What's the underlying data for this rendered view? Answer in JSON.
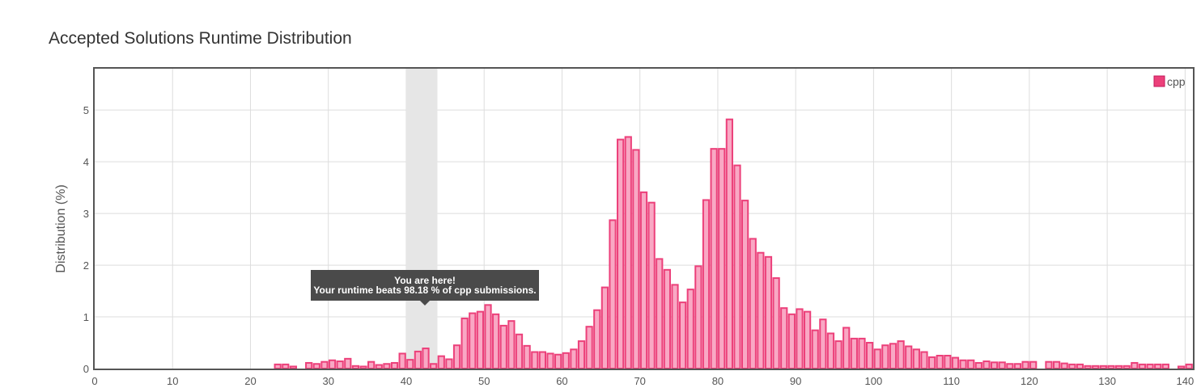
{
  "page": {
    "title": "Accepted Solutions Runtime Distribution"
  },
  "tooltip": {
    "line1": "You are here!",
    "line2": "Your runtime beats 98.18 % of cpp submissions."
  },
  "colors": {
    "bar_fill": "#f9a8c4",
    "bar_stroke": "#ec407a",
    "highlight_band": "#e6e6e6",
    "grid": "#dddddd",
    "axis": "#555555",
    "legend_swatch": "#ec407a"
  },
  "chart_data": {
    "type": "bar",
    "title": "Accepted Solutions Runtime Distribution",
    "xlabel": "",
    "ylabel": "Distribution (%)",
    "xlim": [
      0,
      141
    ],
    "ylim": [
      0,
      5.8
    ],
    "xticks": [
      0,
      10,
      20,
      30,
      40,
      50,
      60,
      70,
      80,
      90,
      100,
      110,
      120,
      130,
      140
    ],
    "yticks": [
      0,
      1,
      2,
      3,
      4,
      5
    ],
    "grid": true,
    "legend": {
      "position": "top-right",
      "entries": [
        "cpp"
      ]
    },
    "highlight_range": [
      40,
      44
    ],
    "series": [
      {
        "name": "cpp",
        "x": [
          24,
          25,
          26,
          28,
          29,
          30,
          31,
          32,
          33,
          34,
          35,
          36,
          37,
          38,
          39,
          40,
          41,
          42,
          43,
          44,
          45,
          46,
          47,
          48,
          49,
          50,
          51,
          52,
          53,
          54,
          55,
          56,
          57,
          58,
          59,
          60,
          61,
          62,
          63,
          64,
          65,
          66,
          67,
          68,
          69,
          70,
          71,
          72,
          73,
          74,
          75,
          76,
          77,
          78,
          79,
          80,
          81,
          82,
          83,
          84,
          85,
          86,
          87,
          88,
          89,
          90,
          91,
          92,
          93,
          94,
          95,
          96,
          97,
          98,
          99,
          100,
          101,
          102,
          103,
          104,
          105,
          106,
          107,
          108,
          109,
          110,
          111,
          112,
          113,
          114,
          115,
          116,
          117,
          118,
          119,
          120,
          121,
          123,
          124,
          125,
          126,
          127,
          128,
          129,
          130,
          131,
          132,
          133,
          134,
          135,
          136,
          137,
          138,
          140,
          141
        ],
        "values": [
          0.08,
          0.08,
          0.04,
          0.11,
          0.09,
          0.13,
          0.16,
          0.14,
          0.19,
          0.05,
          0.04,
          0.13,
          0.07,
          0.09,
          0.11,
          0.29,
          0.17,
          0.33,
          0.39,
          0.09,
          0.24,
          0.18,
          0.45,
          0.97,
          1.07,
          1.1,
          1.23,
          1.05,
          0.83,
          0.92,
          0.66,
          0.44,
          0.32,
          0.32,
          0.29,
          0.27,
          0.3,
          0.37,
          0.53,
          0.81,
          1.13,
          1.57,
          2.87,
          4.43,
          4.48,
          4.23,
          3.41,
          3.21,
          2.12,
          1.91,
          1.62,
          1.28,
          1.53,
          1.98,
          3.26,
          4.25,
          4.25,
          4.82,
          3.93,
          3.25,
          2.51,
          2.24,
          2.16,
          1.75,
          1.17,
          1.05,
          1.15,
          1.1,
          0.74,
          0.95,
          0.68,
          0.53,
          0.79,
          0.58,
          0.58,
          0.5,
          0.37,
          0.45,
          0.48,
          0.53,
          0.43,
          0.37,
          0.32,
          0.22,
          0.25,
          0.25,
          0.21,
          0.16,
          0.16,
          0.11,
          0.14,
          0.12,
          0.12,
          0.09,
          0.09,
          0.13,
          0.13,
          0.13,
          0.13,
          0.1,
          0.08,
          0.08,
          0.05,
          0.05,
          0.05,
          0.05,
          0.05,
          0.05,
          0.11,
          0.08,
          0.08,
          0.08,
          0.08,
          0.04,
          0.08
        ]
      }
    ]
  }
}
